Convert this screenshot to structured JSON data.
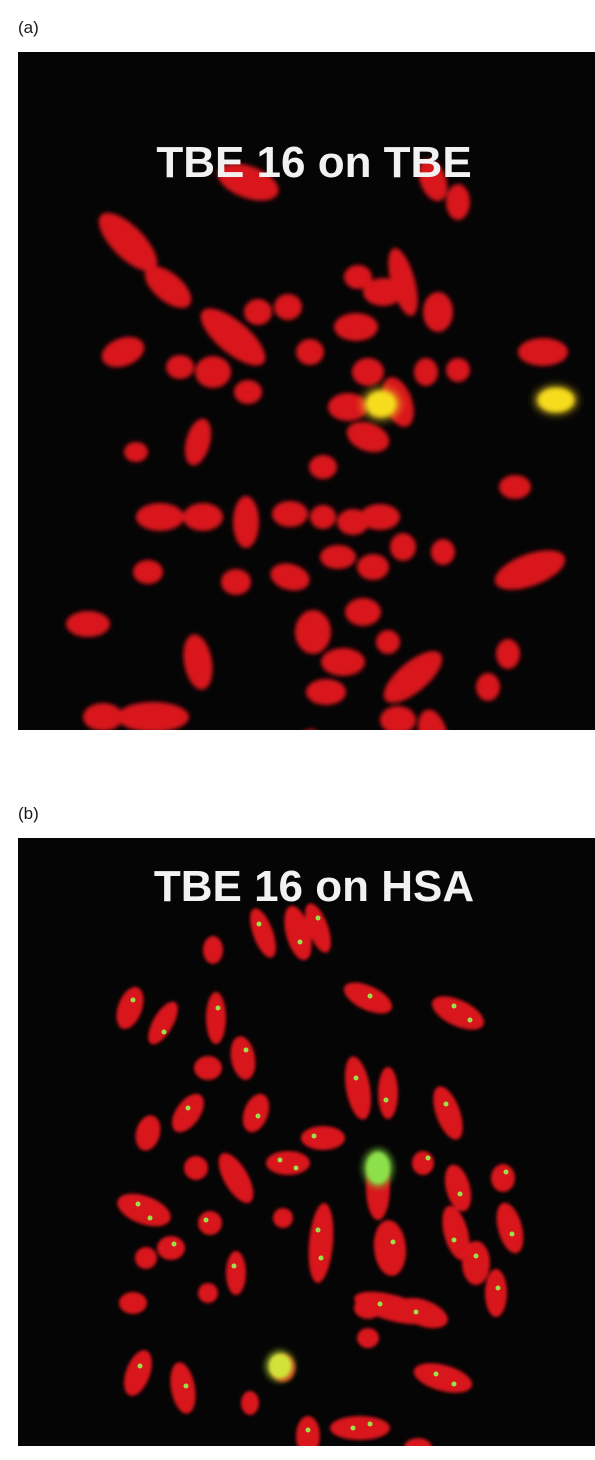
{
  "figure": {
    "panel_a": {
      "label": "(a)",
      "title": "TBE 16 on TBE",
      "colors": {
        "background": "#050505",
        "chromosome": "#d8141a",
        "signal": "#f2d21a",
        "title": "#f2f2f2"
      }
    },
    "panel_b": {
      "label": "(b)",
      "title": "TBE 16 on HSA",
      "colors": {
        "background": "#050505",
        "chromosome": "#d8141a",
        "signal": "#7ad43a",
        "title": "#f2f2f2"
      }
    }
  }
}
